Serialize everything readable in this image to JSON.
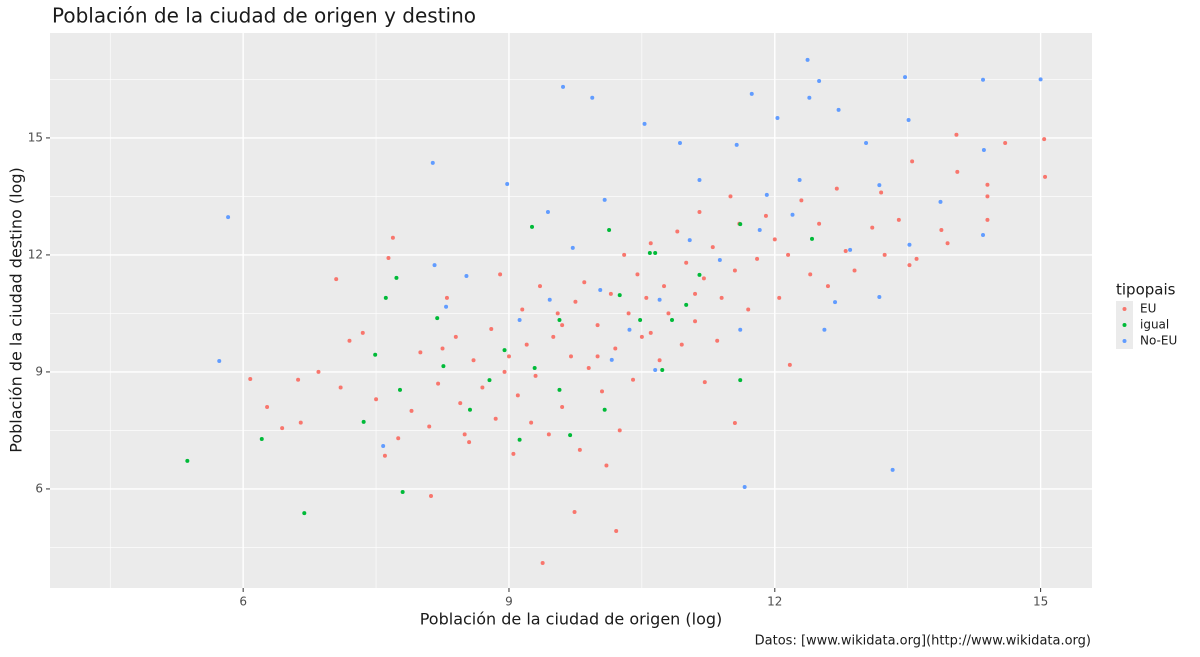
{
  "chart_data": {
    "type": "scatter",
    "title": "Población de la ciudad de origen y destino",
    "x_label": "Población de la ciudad de origen (log)",
    "y_label": "Población de la ciudad destino (log)",
    "caption": "Datos: [www.wikidata.org](http://www.wikidata.org)",
    "legend_title": "tipopais",
    "legend_position": "right",
    "grid": true,
    "xlim": [
      3.82,
      15.58
    ],
    "ylim": [
      3.46,
      17.69
    ],
    "xticks": [
      6,
      9,
      12,
      15
    ],
    "yticks": [
      6,
      9,
      12,
      15
    ],
    "x_minor_grid": [
      4.5,
      7.5,
      10.5,
      13.5
    ],
    "y_minor_grid": [
      4.5,
      7.5,
      10.5,
      13.5,
      16.5
    ],
    "series": [
      {
        "name": "EU",
        "color": "#F8766D",
        "x": [
          9.38,
          10.21,
          9.74,
          8.12,
          6.08,
          6.27,
          6.44,
          7.05,
          7.69,
          7.64,
          15.04,
          15.05,
          14.6,
          14.05,
          14.06,
          13.88,
          13.52,
          13.24,
          12.17,
          11.21,
          11.55,
          6.62,
          6.65,
          6.85,
          7.1,
          7.2,
          7.35,
          7.5,
          7.6,
          7.75,
          7.9,
          8.0,
          8.1,
          8.2,
          8.3,
          8.4,
          8.45,
          8.55,
          8.6,
          8.7,
          8.8,
          8.85,
          8.95,
          9.05,
          9.1,
          9.15,
          9.2,
          9.3,
          9.35,
          9.45,
          9.5,
          9.55,
          9.6,
          9.7,
          9.75,
          9.8,
          9.85,
          9.9,
          10.0,
          10.05,
          10.1,
          10.15,
          10.2,
          10.3,
          10.35,
          10.4,
          10.45,
          10.5,
          10.55,
          10.6,
          10.7,
          10.75,
          10.8,
          10.9,
          10.95,
          11.0,
          11.1,
          11.15,
          11.2,
          11.3,
          11.35,
          11.4,
          11.5,
          11.55,
          11.6,
          11.7,
          11.8,
          11.9,
          12.0,
          12.05,
          12.15,
          12.3,
          12.4,
          12.5,
          12.6,
          12.7,
          12.8,
          12.9,
          13.1,
          13.2,
          13.4,
          13.55,
          13.6,
          13.95,
          14.4,
          14.4,
          14.4,
          8.9,
          8.5,
          9.0,
          9.6,
          10.0,
          10.6,
          11.1,
          10.25,
          9.25,
          8.25
        ],
        "values": [
          4.1,
          4.92,
          5.41,
          5.82,
          8.82,
          8.1,
          7.56,
          11.38,
          12.44,
          11.92,
          14.97,
          14.0,
          14.87,
          15.08,
          14.13,
          12.64,
          11.74,
          12.0,
          9.18,
          8.74,
          7.69,
          8.8,
          7.7,
          9.0,
          8.6,
          9.8,
          10.0,
          8.3,
          6.85,
          7.3,
          8.0,
          9.5,
          7.6,
          8.7,
          10.9,
          9.9,
          8.2,
          7.2,
          9.3,
          8.6,
          10.1,
          7.8,
          9.0,
          6.9,
          8.4,
          10.6,
          9.7,
          8.9,
          11.2,
          7.4,
          9.9,
          10.5,
          8.1,
          9.4,
          10.8,
          7.0,
          11.3,
          9.1,
          10.2,
          8.5,
          6.6,
          11.0,
          9.6,
          12.0,
          10.5,
          8.8,
          11.5,
          9.9,
          10.9,
          12.3,
          9.3,
          11.2,
          10.5,
          12.6,
          9.7,
          11.8,
          10.3,
          13.1,
          11.4,
          12.2,
          9.8,
          10.9,
          13.5,
          11.6,
          12.8,
          10.6,
          11.9,
          13.0,
          12.4,
          10.9,
          12.0,
          13.4,
          11.5,
          12.8,
          11.2,
          13.7,
          12.1,
          11.6,
          12.7,
          13.6,
          12.9,
          14.4,
          11.9,
          12.3,
          13.5,
          12.9,
          13.8,
          11.5,
          7.4,
          9.4,
          10.2,
          9.4,
          10.0,
          11.0,
          7.5,
          7.7,
          9.6
        ]
      },
      {
        "name": "igual",
        "color": "#00BA38",
        "x": [
          5.37,
          6.21,
          6.69,
          7.8,
          7.73,
          7.61,
          7.49,
          7.36,
          7.77,
          8.19,
          8.26,
          8.56,
          8.78,
          8.95,
          9.12,
          9.26,
          9.29,
          9.57,
          9.69,
          10.13,
          10.25,
          10.48,
          10.59,
          10.65,
          10.73,
          10.84,
          11.0,
          11.15,
          11.61,
          11.61,
          12.42,
          10.08,
          9.57
        ],
        "values": [
          6.72,
          7.28,
          5.38,
          5.92,
          11.41,
          10.9,
          9.44,
          7.72,
          8.54,
          10.38,
          9.15,
          8.03,
          8.79,
          9.56,
          7.26,
          12.72,
          9.1,
          10.33,
          7.38,
          12.64,
          10.97,
          10.33,
          12.05,
          12.05,
          9.05,
          10.33,
          10.72,
          11.49,
          8.79,
          12.79,
          12.41,
          8.03,
          8.54
        ]
      },
      {
        "name": "No-EU",
        "color": "#619CFF",
        "x": [
          5.83,
          5.73,
          7.58,
          9.61,
          9.94,
          10.53,
          8.98,
          8.14,
          12.37,
          11.74,
          15.0,
          13.47,
          14.35,
          14.36,
          13.33,
          11.66,
          8.16,
          8.29,
          8.52,
          9.44,
          10.08,
          10.93,
          11.57,
          12.03,
          12.39,
          12.5,
          12.72,
          13.03,
          13.51,
          13.87,
          14.35,
          13.18,
          12.28,
          11.83,
          11.38,
          11.04,
          10.7,
          10.36,
          10.03,
          11.61,
          12.85,
          13.52,
          13.18,
          12.68,
          12.56,
          11.15,
          11.91,
          12.2,
          9.46,
          9.72,
          9.12,
          10.65,
          10.16
        ],
        "values": [
          12.97,
          9.28,
          7.1,
          16.31,
          16.03,
          15.36,
          13.82,
          14.36,
          17.0,
          16.13,
          16.5,
          16.56,
          16.49,
          14.69,
          6.49,
          6.05,
          11.74,
          10.67,
          11.46,
          13.1,
          13.41,
          14.87,
          14.82,
          15.51,
          16.03,
          16.46,
          15.72,
          14.87,
          15.46,
          13.36,
          12.51,
          13.79,
          13.92,
          12.64,
          11.87,
          12.38,
          10.85,
          10.08,
          11.1,
          10.08,
          12.13,
          12.26,
          10.92,
          10.79,
          10.08,
          13.92,
          13.54,
          13.03,
          10.85,
          12.18,
          10.33,
          9.05,
          9.31
        ]
      }
    ]
  }
}
